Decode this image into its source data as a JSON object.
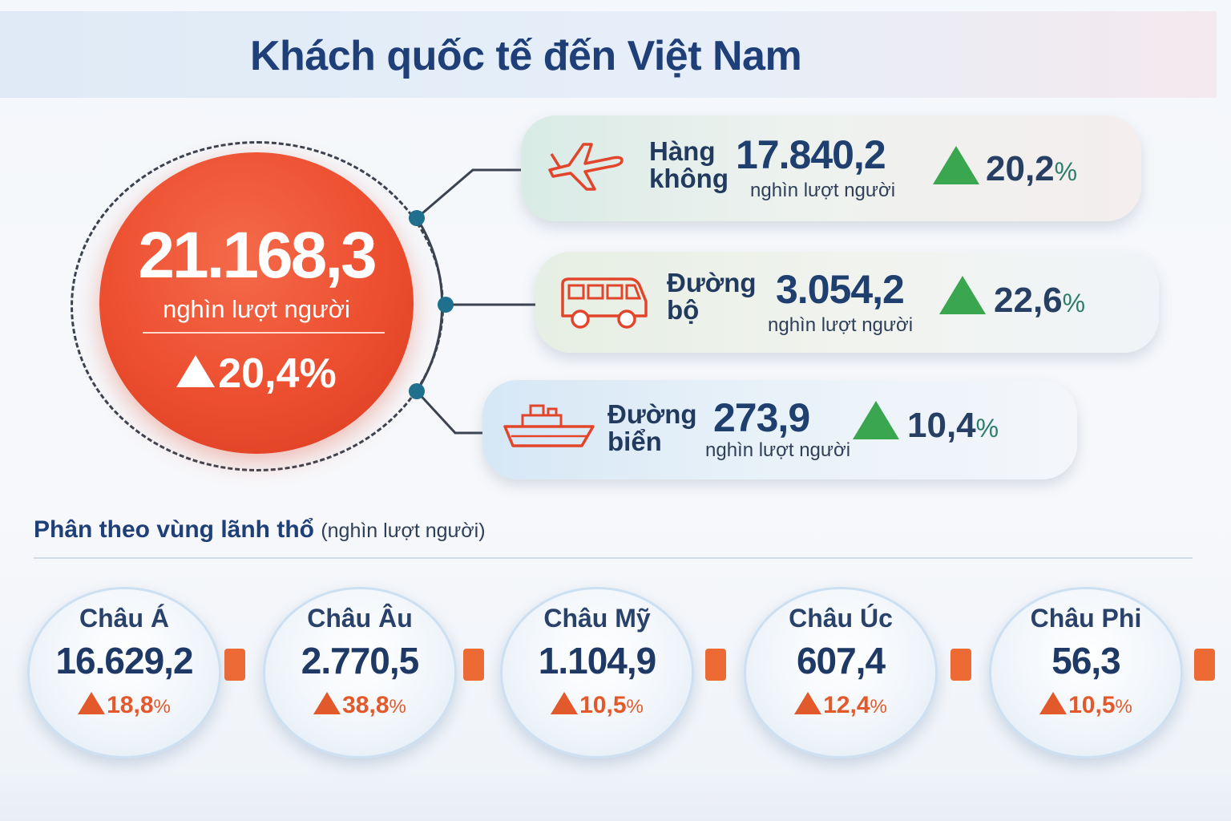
{
  "title": "Khách quốc tế đến Việt Nam",
  "total": {
    "value": "21.168,3",
    "unit": "nghìn lượt người",
    "growth": "20,4%"
  },
  "transport": {
    "air": {
      "name_line1": "Hàng",
      "name_line2": "không",
      "value": "17.840,2",
      "unit": "nghìn lượt người",
      "growth": "20,2",
      "pct": "%"
    },
    "road": {
      "name_line1": "Đường",
      "name_line2": "bộ",
      "value": "3.054,2",
      "unit": "nghìn lượt người",
      "growth": "22,6",
      "pct": "%"
    },
    "sea": {
      "name_line1": "Đường",
      "name_line2": "biển",
      "value": "273,9",
      "unit": "nghìn lượt người",
      "growth": "10,4",
      "pct": "%"
    }
  },
  "section": {
    "title": "Phân theo vùng lãnh thổ",
    "subtitle": "(nghìn lượt người)"
  },
  "regions": [
    {
      "name": "Châu Á",
      "value": "16.629,2",
      "growth": "18,8",
      "pct": "%"
    },
    {
      "name": "Châu Âu",
      "value": "2.770,5",
      "growth": "38,8",
      "pct": "%"
    },
    {
      "name": "Châu Mỹ",
      "value": "1.104,9",
      "growth": "10,5",
      "pct": "%"
    },
    {
      "name": "Châu Úc",
      "value": "607,4",
      "growth": "12,4",
      "pct": "%"
    },
    {
      "name": "Châu Phi",
      "value": "56,3",
      "growth": "10,5",
      "pct": "%"
    }
  ],
  "colors": {
    "accent_red": "#ec4e2f",
    "title_blue": "#1f3f78",
    "growth_green": "#3aa650",
    "growth_orange": "#e2592c",
    "connector_dot": "#1f6f8e"
  },
  "icons": [
    "airplane-icon",
    "van-icon",
    "ship-icon",
    "up-triangle-icon"
  ]
}
